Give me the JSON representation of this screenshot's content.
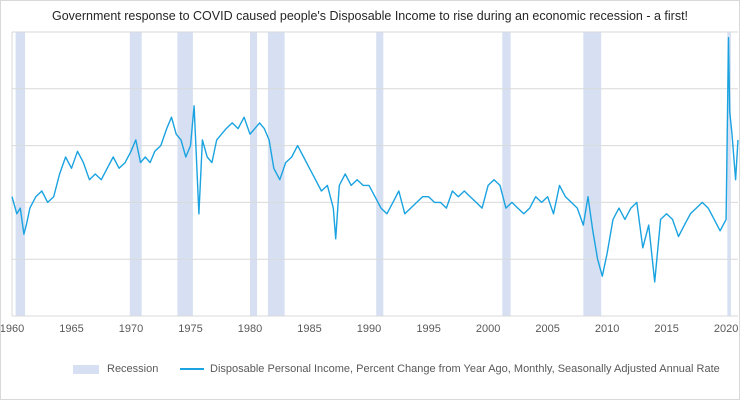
{
  "colors": {
    "series": "#1aa3e0",
    "recession": "#d6e0f2",
    "grid": "#d9d9d9",
    "axis_text": "#595959"
  },
  "chart_data": {
    "type": "line",
    "title": "Government response to COVID caused people's Disposable Income to rise during an economic recession - a first!",
    "xlabel": "",
    "ylabel": "",
    "xlim": [
      1960,
      2021
    ],
    "ylim": [
      -5,
      20
    ],
    "x_ticks": [
      "1960",
      "1965",
      "1970",
      "1975",
      "1980",
      "1985",
      "1990",
      "1995",
      "2000",
      "2005",
      "2010",
      "2015",
      "2020"
    ],
    "grid": "horizontal",
    "legend_position": "bottom",
    "legend": [
      {
        "name": "Recession",
        "kind": "band"
      },
      {
        "name": "Disposable Personal Income, Percent Change from Year Ago, Monthly, Seasonally Adjusted Annual Rate",
        "kind": "line"
      }
    ],
    "recessions": [
      [
        1960.3,
        1961.1
      ],
      [
        1969.9,
        1970.9
      ],
      [
        1973.9,
        1975.2
      ],
      [
        1980.0,
        1980.6
      ],
      [
        1981.5,
        1982.9
      ],
      [
        1990.6,
        1991.2
      ],
      [
        2001.2,
        2001.9
      ],
      [
        2008.0,
        2009.5
      ],
      [
        2020.1,
        2020.4
      ]
    ],
    "series": [
      {
        "name": "Disposable Personal Income, Percent Change from Year Ago, Monthly, Seasonally Adjusted Annual Rate",
        "x": [
          1960.0,
          1960.4,
          1960.7,
          1961.0,
          1961.2,
          1961.5,
          1962.0,
          1962.5,
          1963.0,
          1963.5,
          1964.0,
          1964.5,
          1965.0,
          1965.5,
          1966.0,
          1966.5,
          1967.0,
          1967.5,
          1968.0,
          1968.5,
          1969.0,
          1969.5,
          1970.0,
          1970.4,
          1970.8,
          1971.2,
          1971.6,
          1972.0,
          1972.5,
          1973.0,
          1973.4,
          1973.8,
          1974.2,
          1974.6,
          1975.0,
          1975.3,
          1975.7,
          1976.0,
          1976.4,
          1976.8,
          1977.2,
          1977.6,
          1978.0,
          1978.5,
          1979.0,
          1979.5,
          1980.0,
          1980.4,
          1980.8,
          1981.2,
          1981.6,
          1982.0,
          1982.5,
          1983.0,
          1983.5,
          1984.0,
          1984.5,
          1985.0,
          1985.5,
          1986.0,
          1986.5,
          1987.0,
          1987.2,
          1987.5,
          1988.0,
          1988.5,
          1989.0,
          1989.5,
          1990.0,
          1990.5,
          1991.0,
          1991.5,
          1992.0,
          1992.5,
          1993.0,
          1993.5,
          1994.0,
          1994.5,
          1995.0,
          1995.5,
          1996.0,
          1996.5,
          1997.0,
          1997.5,
          1998.0,
          1998.5,
          1999.0,
          1999.5,
          2000.0,
          2000.5,
          2001.0,
          2001.5,
          2002.0,
          2002.5,
          2003.0,
          2003.5,
          2004.0,
          2004.5,
          2005.0,
          2005.5,
          2006.0,
          2006.5,
          2007.0,
          2007.5,
          2008.0,
          2008.4,
          2008.8,
          2009.2,
          2009.6,
          2010.0,
          2010.5,
          2011.0,
          2011.5,
          2012.0,
          2012.5,
          2013.0,
          2013.5,
          2014.0,
          2014.5,
          2015.0,
          2015.5,
          2016.0,
          2016.5,
          2017.0,
          2017.5,
          2018.0,
          2018.5,
          2019.0,
          2019.5,
          2020.0,
          2020.2,
          2020.3,
          2020.5,
          2020.8,
          2021.0
        ],
        "values": [
          5.5,
          4.0,
          4.5,
          2.2,
          3.0,
          4.5,
          5.5,
          6.0,
          5.0,
          5.5,
          7.5,
          9.0,
          8.0,
          9.5,
          8.5,
          7.0,
          7.5,
          7.0,
          8.0,
          9.0,
          8.0,
          8.5,
          9.5,
          10.5,
          8.5,
          9.0,
          8.5,
          9.5,
          10.0,
          11.5,
          12.5,
          11.0,
          10.5,
          9.0,
          10.0,
          13.5,
          4.0,
          10.5,
          9.0,
          8.5,
          10.5,
          11.0,
          11.5,
          12.0,
          11.5,
          12.5,
          11.0,
          11.5,
          12.0,
          11.5,
          10.5,
          8.0,
          7.0,
          8.5,
          9.0,
          10.0,
          9.0,
          8.0,
          7.0,
          6.0,
          6.5,
          4.5,
          1.8,
          6.5,
          7.5,
          6.5,
          7.0,
          6.5,
          6.5,
          5.5,
          4.5,
          4.0,
          5.0,
          6.0,
          4.0,
          4.5,
          5.0,
          5.5,
          5.5,
          5.0,
          5.0,
          4.5,
          6.0,
          5.5,
          6.0,
          5.5,
          5.0,
          4.5,
          6.5,
          7.0,
          6.5,
          4.5,
          5.0,
          4.5,
          4.0,
          4.5,
          5.5,
          5.0,
          5.5,
          4.0,
          6.5,
          5.5,
          5.0,
          4.5,
          3.0,
          5.5,
          2.5,
          0.0,
          -1.5,
          0.5,
          3.5,
          4.5,
          3.5,
          4.5,
          5.0,
          1.0,
          3.0,
          -2.0,
          3.5,
          4.0,
          3.5,
          2.0,
          3.0,
          4.0,
          4.5,
          5.0,
          4.5,
          3.5,
          2.5,
          3.5,
          19.5,
          13.0,
          11.0,
          7.0,
          10.5
        ]
      }
    ]
  }
}
